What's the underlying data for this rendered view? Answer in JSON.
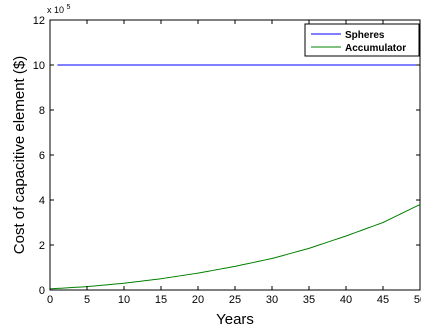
{
  "chart_data": {
    "type": "line",
    "title": "",
    "xlabel": "Years",
    "ylabel": "Cost of capacitive element ($)",
    "xlim": [
      0,
      50
    ],
    "ylim": [
      0,
      12
    ],
    "y_multiplier_label": "x 10",
    "y_multiplier_exponent": "5",
    "xticks": [
      0,
      5,
      10,
      15,
      20,
      25,
      30,
      35,
      40,
      45,
      50
    ],
    "yticks": [
      0,
      2,
      4,
      6,
      8,
      10,
      12
    ],
    "grid": false,
    "legend_position": "top-right",
    "series": [
      {
        "name": "Spheres",
        "color": "#0000ff",
        "x": [
          1,
          50
        ],
        "y": [
          10.0,
          10.0
        ]
      },
      {
        "name": "Accumulator",
        "color": "#008000",
        "x": [
          0,
          5,
          10,
          15,
          20,
          25,
          30,
          35,
          40,
          45,
          50
        ],
        "y": [
          0.05,
          0.15,
          0.3,
          0.5,
          0.75,
          1.05,
          1.4,
          1.85,
          2.4,
          3.0,
          3.8
        ]
      }
    ]
  }
}
